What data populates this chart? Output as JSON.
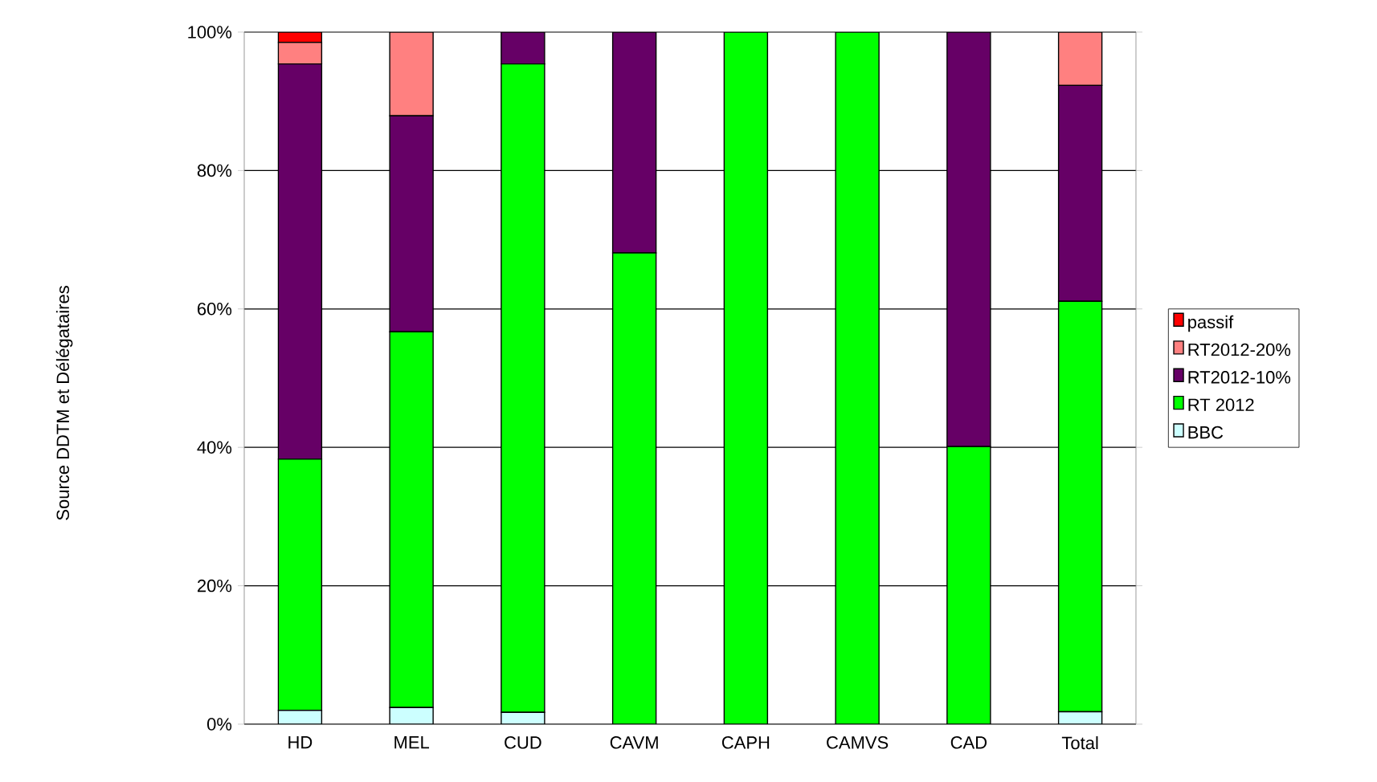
{
  "chart_data": {
    "type": "bar",
    "stacked": true,
    "annotations": [
      "Source DDTM et Délégataires"
    ],
    "categories": [
      "HD",
      "MEL",
      "CUD",
      "CAVM",
      "CAPH",
      "CAMVS",
      "CAD",
      "Total"
    ],
    "series": [
      {
        "name": "BBC",
        "color": "#ccffff",
        "values": [
          2.0,
          2.4,
          1.7,
          0,
          0,
          0,
          0,
          1.8
        ]
      },
      {
        "name": "RT 2012",
        "color": "#00ff00",
        "values": [
          36.3,
          54.3,
          93.7,
          68.1,
          100,
          100,
          40.1,
          59.3
        ]
      },
      {
        "name": "RT2012-10%",
        "color": "#660066",
        "values": [
          57.1,
          31.2,
          4.6,
          31.9,
          0,
          0,
          59.9,
          31.2
        ]
      },
      {
        "name": "RT2012-20%",
        "color": "#ff8080",
        "values": [
          3.1,
          12.1,
          0,
          0,
          0,
          0,
          0,
          7.7
        ]
      },
      {
        "name": "passif",
        "color": "#ff0000",
        "values": [
          1.5,
          0,
          0,
          0,
          0,
          0,
          0,
          0
        ]
      }
    ],
    "ylim": [
      0,
      100
    ],
    "yticks": [
      {
        "value": 0,
        "label": "0%"
      },
      {
        "value": 20,
        "label": "20%"
      },
      {
        "value": 40,
        "label": "40%"
      },
      {
        "value": 60,
        "label": "60%"
      },
      {
        "value": 80,
        "label": "80%"
      },
      {
        "value": 100,
        "label": "100%"
      }
    ],
    "grid": "y",
    "legend": "right"
  }
}
